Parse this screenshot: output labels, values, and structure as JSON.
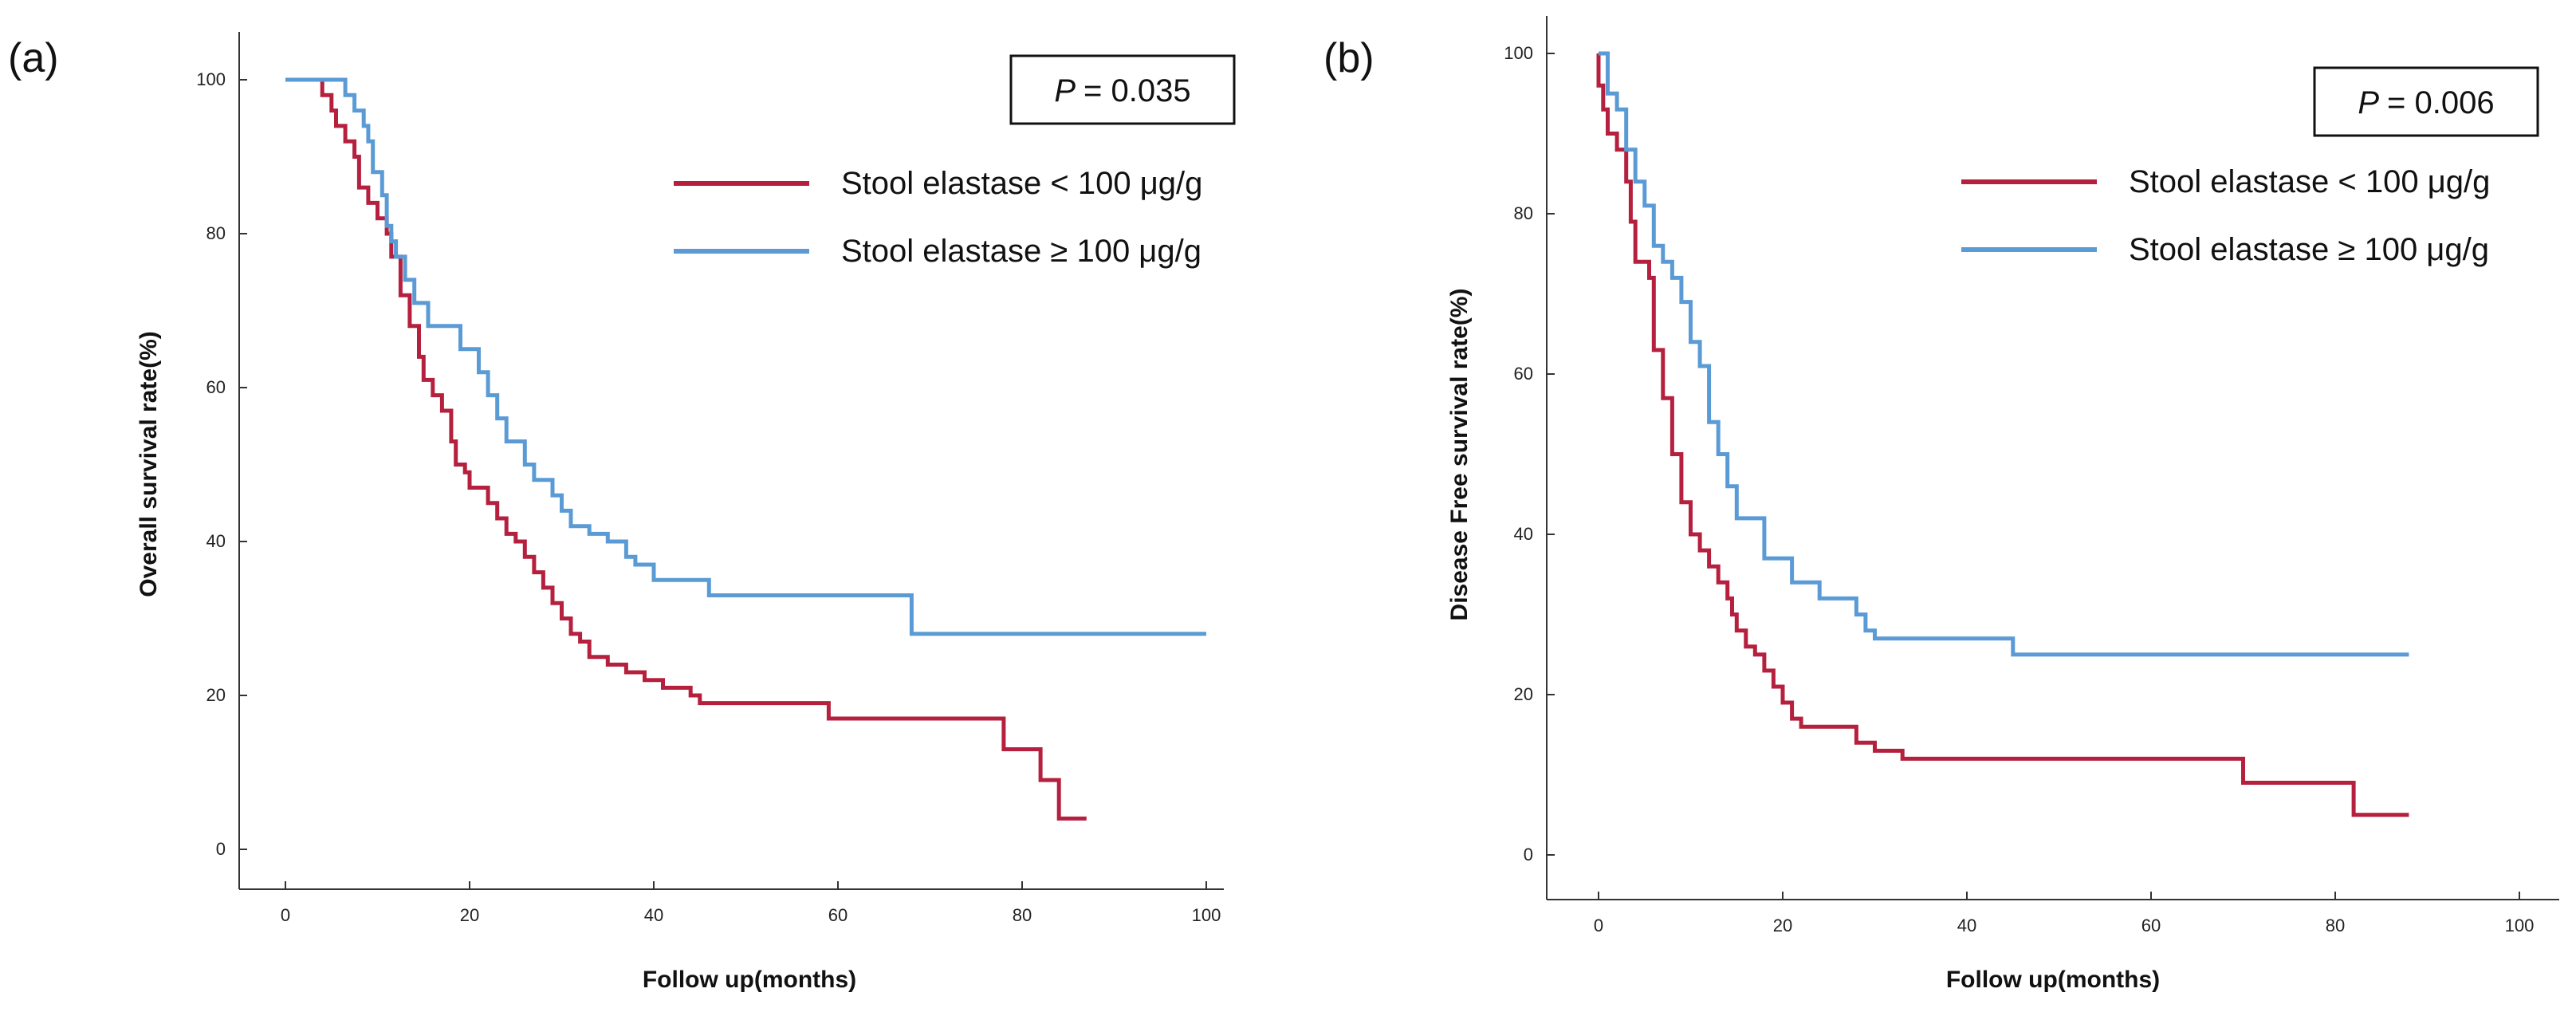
{
  "chart_data": [
    {
      "type": "line",
      "panel_label": "(a)",
      "xlabel": "Follow up(months)",
      "ylabel": "Overall survival rate(%)",
      "xlim": [
        0,
        100
      ],
      "ylim": [
        0,
        100
      ],
      "xticks": [
        "0",
        "20",
        "40",
        "60",
        "80",
        "100"
      ],
      "yticks": [
        "0",
        "20",
        "40",
        "60",
        "80",
        "100"
      ],
      "annotation": {
        "p_symbol": "P",
        "p_text": "= 0.035"
      },
      "series": [
        {
          "name": "Stool elastase < 100 μg/g",
          "color": "#b5203e",
          "steps": [
            [
              0,
              100
            ],
            [
              4,
              100
            ],
            [
              4,
              98
            ],
            [
              5,
              98
            ],
            [
              5,
              96
            ],
            [
              5.5,
              96
            ],
            [
              5.5,
              94
            ],
            [
              6.5,
              94
            ],
            [
              6.5,
              92
            ],
            [
              7.5,
              92
            ],
            [
              7.5,
              90
            ],
            [
              8,
              90
            ],
            [
              8,
              86
            ],
            [
              9,
              86
            ],
            [
              9,
              84
            ],
            [
              10,
              84
            ],
            [
              10,
              82
            ],
            [
              11,
              82
            ],
            [
              11,
              80
            ],
            [
              11.5,
              80
            ],
            [
              11.5,
              77
            ],
            [
              12.5,
              77
            ],
            [
              12.5,
              72
            ],
            [
              13.5,
              72
            ],
            [
              13.5,
              68
            ],
            [
              14.5,
              68
            ],
            [
              14.5,
              64
            ],
            [
              15,
              64
            ],
            [
              15,
              61
            ],
            [
              16,
              61
            ],
            [
              16,
              59
            ],
            [
              17,
              59
            ],
            [
              17,
              57
            ],
            [
              18,
              57
            ],
            [
              18,
              53
            ],
            [
              18.5,
              53
            ],
            [
              18.5,
              50
            ],
            [
              19.5,
              50
            ],
            [
              19.5,
              49
            ],
            [
              20,
              49
            ],
            [
              20,
              47
            ],
            [
              22,
              47
            ],
            [
              22,
              45
            ],
            [
              23,
              45
            ],
            [
              23,
              43
            ],
            [
              24,
              43
            ],
            [
              24,
              41
            ],
            [
              25,
              41
            ],
            [
              25,
              40
            ],
            [
              26,
              40
            ],
            [
              26,
              38
            ],
            [
              27,
              38
            ],
            [
              27,
              36
            ],
            [
              28,
              36
            ],
            [
              28,
              34
            ],
            [
              29,
              34
            ],
            [
              29,
              32
            ],
            [
              30,
              32
            ],
            [
              30,
              30
            ],
            [
              31,
              30
            ],
            [
              31,
              28
            ],
            [
              32,
              28
            ],
            [
              32,
              27
            ],
            [
              33,
              27
            ],
            [
              33,
              25
            ],
            [
              35,
              25
            ],
            [
              35,
              24
            ],
            [
              37,
              24
            ],
            [
              37,
              23
            ],
            [
              39,
              23
            ],
            [
              39,
              22
            ],
            [
              41,
              22
            ],
            [
              41,
              21
            ],
            [
              44,
              21
            ],
            [
              44,
              20
            ],
            [
              45,
              20
            ],
            [
              45,
              19
            ],
            [
              59,
              19
            ],
            [
              59,
              17
            ],
            [
              78,
              17
            ],
            [
              78,
              13
            ],
            [
              82,
              13
            ],
            [
              82,
              9
            ],
            [
              84,
              9
            ],
            [
              84,
              4
            ],
            [
              87,
              4
            ]
          ]
        },
        {
          "name": "Stool elastase ≥ 100 μg/g",
          "color": "#5b9bd5",
          "steps": [
            [
              0,
              100
            ],
            [
              6.5,
              100
            ],
            [
              6.5,
              98
            ],
            [
              7.5,
              98
            ],
            [
              7.5,
              96
            ],
            [
              8.5,
              96
            ],
            [
              8.5,
              94
            ],
            [
              9,
              94
            ],
            [
              9,
              92
            ],
            [
              9.5,
              92
            ],
            [
              9.5,
              88
            ],
            [
              10.5,
              88
            ],
            [
              10.5,
              85
            ],
            [
              11,
              85
            ],
            [
              11,
              81
            ],
            [
              11.5,
              81
            ],
            [
              11.5,
              79
            ],
            [
              12,
              79
            ],
            [
              12,
              77
            ],
            [
              13,
              77
            ],
            [
              13,
              74
            ],
            [
              14,
              74
            ],
            [
              14,
              71
            ],
            [
              15.5,
              71
            ],
            [
              15.5,
              68
            ],
            [
              19,
              68
            ],
            [
              19,
              65
            ],
            [
              21,
              65
            ],
            [
              21,
              62
            ],
            [
              22,
              62
            ],
            [
              22,
              59
            ],
            [
              23,
              59
            ],
            [
              23,
              56
            ],
            [
              24,
              56
            ],
            [
              24,
              53
            ],
            [
              26,
              53
            ],
            [
              26,
              50
            ],
            [
              27,
              50
            ],
            [
              27,
              48
            ],
            [
              29,
              48
            ],
            [
              29,
              46
            ],
            [
              30,
              46
            ],
            [
              30,
              44
            ],
            [
              31,
              44
            ],
            [
              31,
              42
            ],
            [
              33,
              42
            ],
            [
              33,
              41
            ],
            [
              35,
              41
            ],
            [
              35,
              40
            ],
            [
              37,
              40
            ],
            [
              37,
              38
            ],
            [
              38,
              38
            ],
            [
              38,
              37
            ],
            [
              40,
              37
            ],
            [
              40,
              35
            ],
            [
              46,
              35
            ],
            [
              46,
              33
            ],
            [
              68,
              33
            ],
            [
              68,
              28
            ],
            [
              100,
              28
            ]
          ]
        }
      ]
    },
    {
      "type": "line",
      "panel_label": "(b)",
      "xlabel": "Follow up(months)",
      "ylabel": "Disease Free survival rate(%)",
      "xlim": [
        0,
        100
      ],
      "ylim": [
        0,
        100
      ],
      "xticks": [
        "0",
        "20",
        "40",
        "60",
        "80",
        "100"
      ],
      "yticks": [
        "0",
        "20",
        "40",
        "60",
        "80",
        "100"
      ],
      "annotation": {
        "p_symbol": "P",
        "p_text": "= 0.006"
      },
      "series": [
        {
          "name": "Stool elastase < 100 μg/g",
          "color": "#b5203e",
          "steps": [
            [
              0,
              100
            ],
            [
              0,
              96
            ],
            [
              0.5,
              96
            ],
            [
              0.5,
              93
            ],
            [
              1,
              93
            ],
            [
              1,
              90
            ],
            [
              2,
              90
            ],
            [
              2,
              88
            ],
            [
              3,
              88
            ],
            [
              3,
              84
            ],
            [
              3.5,
              84
            ],
            [
              3.5,
              79
            ],
            [
              4,
              79
            ],
            [
              4,
              74
            ],
            [
              5.5,
              74
            ],
            [
              5.5,
              72
            ],
            [
              6,
              72
            ],
            [
              6,
              63
            ],
            [
              7,
              63
            ],
            [
              7,
              57
            ],
            [
              8,
              57
            ],
            [
              8,
              50
            ],
            [
              9,
              50
            ],
            [
              9,
              44
            ],
            [
              10,
              44
            ],
            [
              10,
              40
            ],
            [
              11,
              40
            ],
            [
              11,
              38
            ],
            [
              12,
              38
            ],
            [
              12,
              36
            ],
            [
              13,
              36
            ],
            [
              13,
              34
            ],
            [
              14,
              34
            ],
            [
              14,
              32
            ],
            [
              14.5,
              32
            ],
            [
              14.5,
              30
            ],
            [
              15,
              30
            ],
            [
              15,
              28
            ],
            [
              16,
              28
            ],
            [
              16,
              26
            ],
            [
              17,
              26
            ],
            [
              17,
              25
            ],
            [
              18,
              25
            ],
            [
              18,
              23
            ],
            [
              19,
              23
            ],
            [
              19,
              21
            ],
            [
              20,
              21
            ],
            [
              20,
              19
            ],
            [
              21,
              19
            ],
            [
              21,
              17
            ],
            [
              22,
              17
            ],
            [
              22,
              16
            ],
            [
              28,
              16
            ],
            [
              28,
              14
            ],
            [
              30,
              14
            ],
            [
              30,
              13
            ],
            [
              33,
              13
            ],
            [
              33,
              12
            ],
            [
              70,
              12
            ],
            [
              70,
              9
            ],
            [
              82,
              9
            ],
            [
              82,
              5
            ],
            [
              88,
              5
            ]
          ]
        },
        {
          "name": "Stool elastase ≥ 100 μg/g",
          "color": "#5b9bd5",
          "steps": [
            [
              0,
              100
            ],
            [
              1,
              100
            ],
            [
              1,
              95
            ],
            [
              2,
              95
            ],
            [
              2,
              93
            ],
            [
              3,
              93
            ],
            [
              3,
              88
            ],
            [
              4,
              88
            ],
            [
              4,
              84
            ],
            [
              5,
              84
            ],
            [
              5,
              81
            ],
            [
              6,
              81
            ],
            [
              6,
              76
            ],
            [
              7,
              76
            ],
            [
              7,
              74
            ],
            [
              8,
              74
            ],
            [
              8,
              72
            ],
            [
              9,
              72
            ],
            [
              9,
              69
            ],
            [
              10,
              69
            ],
            [
              10,
              64
            ],
            [
              11,
              64
            ],
            [
              11,
              61
            ],
            [
              12,
              61
            ],
            [
              12,
              54
            ],
            [
              13,
              54
            ],
            [
              13,
              50
            ],
            [
              14,
              50
            ],
            [
              14,
              46
            ],
            [
              15,
              46
            ],
            [
              15,
              42
            ],
            [
              18,
              42
            ],
            [
              18,
              37
            ],
            [
              21,
              37
            ],
            [
              21,
              34
            ],
            [
              24,
              34
            ],
            [
              24,
              32
            ],
            [
              28,
              32
            ],
            [
              28,
              30
            ],
            [
              29,
              30
            ],
            [
              29,
              28
            ],
            [
              30,
              28
            ],
            [
              30,
              27
            ],
            [
              45,
              27
            ],
            [
              45,
              25
            ],
            [
              88,
              25
            ]
          ]
        }
      ]
    }
  ]
}
